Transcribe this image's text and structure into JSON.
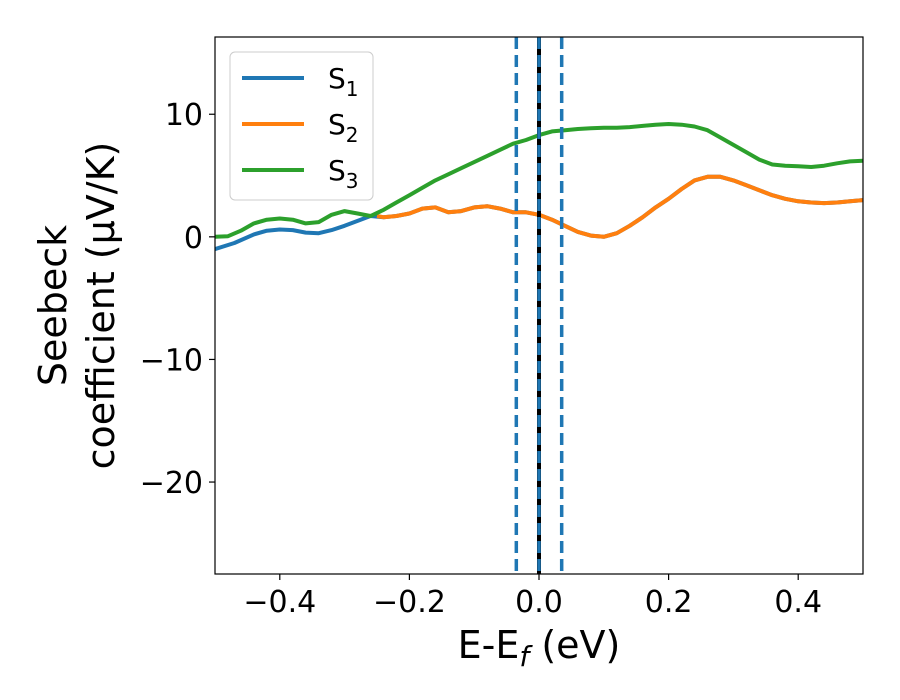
{
  "chart_data": {
    "type": "line",
    "xlabel": "E-E",
    "xlabel_subscript": "f",
    "xlabel_unit": " (eV)",
    "ylabel_line1": "Seebeck",
    "ylabel_line2": "coefficient  (μV/K)",
    "xlim": [
      -0.5,
      0.5
    ],
    "ylim": [
      -27.5,
      16.3
    ],
    "x_ticks": [
      -0.4,
      -0.2,
      0.0,
      0.2,
      0.4
    ],
    "x_tick_labels": [
      "−0.4",
      "−0.2",
      "0.0",
      "0.2",
      "0.4"
    ],
    "y_ticks": [
      -20,
      -10,
      0,
      10
    ],
    "y_tick_labels": [
      "−20",
      "−10",
      "0",
      "10"
    ],
    "legend_position": "top-left",
    "grid": false,
    "vertical_lines": [
      {
        "x": -0.035,
        "style": "dashed",
        "color": "#1f77b4"
      },
      {
        "x": 0.0,
        "style": "solid",
        "color": "#000000"
      },
      {
        "x": 0.0,
        "style": "dashed",
        "color": "#1f77b4"
      },
      {
        "x": 0.035,
        "style": "dashed",
        "color": "#1f77b4"
      }
    ],
    "series": [
      {
        "name": "S",
        "subscript": "1",
        "color": "#1f77b4",
        "x": [
          -0.5,
          -0.47,
          -0.44,
          -0.42,
          -0.4,
          -0.38,
          -0.36,
          -0.34,
          -0.32,
          -0.3,
          -0.28,
          -0.26,
          -0.24,
          -0.22,
          -0.2,
          -0.18,
          -0.16,
          -0.14,
          -0.12,
          -0.1,
          -0.08,
          -0.06,
          -0.04,
          -0.02,
          0.0,
          0.02,
          0.04,
          0.06,
          0.08,
          0.1,
          0.12,
          0.14,
          0.16,
          0.18,
          0.2,
          0.22,
          0.24,
          0.26,
          0.28,
          0.3,
          0.32,
          0.34,
          0.36,
          0.38,
          0.4,
          0.42,
          0.44,
          0.46,
          0.48,
          0.5
        ],
        "y": [
          -1.0,
          -0.5,
          0.2,
          0.5,
          0.6,
          0.55,
          0.35,
          0.3,
          0.55,
          0.9,
          1.3,
          1.7,
          1.6,
          1.7,
          1.9,
          2.3,
          2.4,
          2.0,
          2.1,
          2.4,
          2.5,
          2.3,
          2.0,
          2.0,
          1.8,
          1.4,
          0.9,
          0.4,
          0.1,
          0.0,
          0.3,
          0.9,
          1.6,
          2.4,
          3.1,
          3.9,
          4.6,
          4.9,
          4.9,
          4.6,
          4.2,
          3.8,
          3.4,
          3.1,
          2.9,
          2.8,
          2.75,
          2.8,
          2.9,
          3.0
        ]
      },
      {
        "name": "S",
        "subscript": "2",
        "color": "#ff7f0e",
        "x": [
          -0.25,
          -0.24,
          -0.22,
          -0.2,
          -0.18,
          -0.16,
          -0.14,
          -0.12,
          -0.1,
          -0.08,
          -0.06,
          -0.04,
          -0.02,
          0.0,
          0.02,
          0.04,
          0.06,
          0.08,
          0.1,
          0.12,
          0.14,
          0.16,
          0.18,
          0.2,
          0.22,
          0.24,
          0.26,
          0.28,
          0.3,
          0.32,
          0.34,
          0.36,
          0.38,
          0.4,
          0.42,
          0.44,
          0.46,
          0.48,
          0.5
        ],
        "y": [
          1.7,
          1.6,
          1.7,
          1.9,
          2.3,
          2.4,
          2.0,
          2.1,
          2.4,
          2.5,
          2.3,
          2.0,
          2.0,
          1.8,
          1.4,
          0.9,
          0.4,
          0.1,
          0.0,
          0.3,
          0.9,
          1.6,
          2.4,
          3.1,
          3.9,
          4.6,
          4.9,
          4.9,
          4.6,
          4.2,
          3.8,
          3.4,
          3.1,
          2.9,
          2.8,
          2.75,
          2.8,
          2.9,
          3.0
        ]
      },
      {
        "name": "S",
        "subscript": "3",
        "color": "#2ca02c",
        "x": [
          -0.5,
          -0.48,
          -0.46,
          -0.44,
          -0.42,
          -0.4,
          -0.38,
          -0.36,
          -0.34,
          -0.32,
          -0.3,
          -0.28,
          -0.26,
          -0.24,
          -0.22,
          -0.2,
          -0.18,
          -0.16,
          -0.14,
          -0.12,
          -0.1,
          -0.08,
          -0.06,
          -0.04,
          -0.02,
          0.0,
          0.02,
          0.04,
          0.06,
          0.08,
          0.1,
          0.12,
          0.14,
          0.16,
          0.18,
          0.2,
          0.22,
          0.24,
          0.26,
          0.28,
          0.3,
          0.32,
          0.34,
          0.36,
          0.38,
          0.4,
          0.42,
          0.44,
          0.46,
          0.48,
          0.5
        ],
        "y": [
          0.0,
          0.05,
          0.5,
          1.1,
          1.4,
          1.5,
          1.4,
          1.1,
          1.2,
          1.8,
          2.1,
          1.9,
          1.7,
          2.2,
          2.8,
          3.4,
          4.0,
          4.6,
          5.1,
          5.6,
          6.1,
          6.6,
          7.1,
          7.6,
          7.9,
          8.3,
          8.6,
          8.7,
          8.8,
          8.85,
          8.9,
          8.9,
          8.95,
          9.05,
          9.15,
          9.2,
          9.15,
          9.0,
          8.7,
          8.1,
          7.5,
          6.9,
          6.3,
          5.9,
          5.8,
          5.75,
          5.7,
          5.8,
          6.0,
          6.15,
          6.2
        ]
      }
    ]
  }
}
